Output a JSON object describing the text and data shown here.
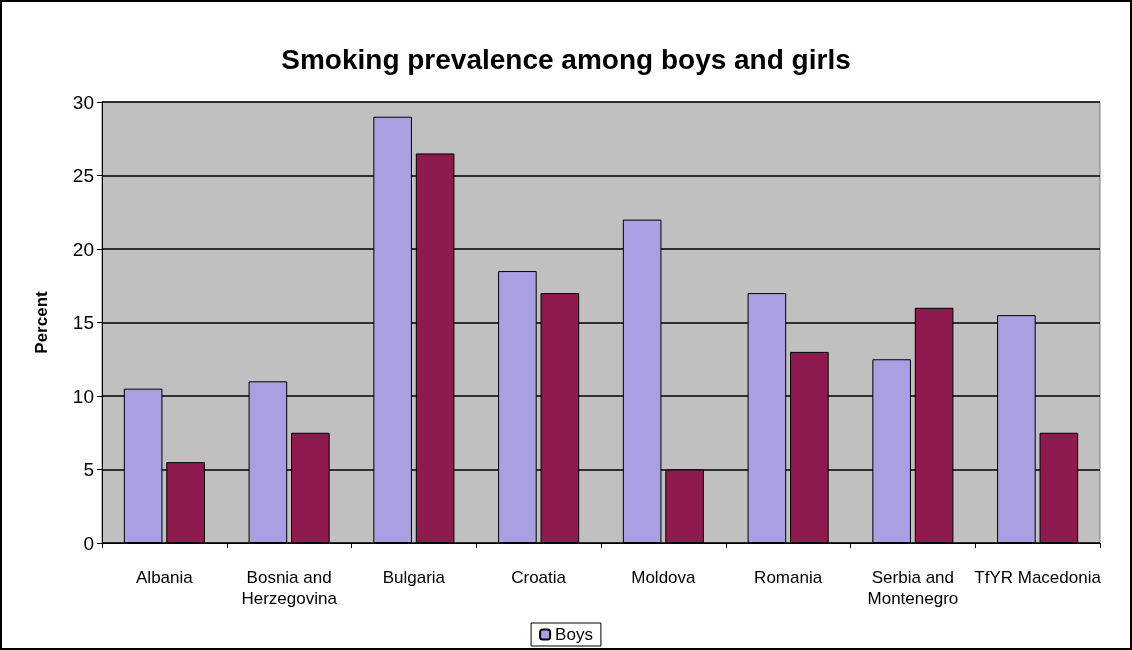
{
  "chart_data": {
    "type": "bar",
    "title": "Smoking prevalence among boys and girls",
    "ylabel": "Percent",
    "categories": [
      "Albania",
      "Bosnia and\nHerzegovina",
      "Bulgaria",
      "Croatia",
      "Moldova",
      "Romania",
      "Serbia and\nMontenegro",
      "TfYR Macedonia"
    ],
    "series": [
      {
        "name": "Boys",
        "color": "#a8a0e0",
        "values": [
          10.5,
          11,
          29,
          18.5,
          22,
          17,
          12.5,
          15.5
        ]
      },
      {
        "color": "#8e1a50",
        "values": [
          5.5,
          7.5,
          26.5,
          17,
          5,
          13,
          16,
          7.5
        ]
      }
    ],
    "ylim": [
      0,
      30
    ],
    "yticks": [
      0,
      5,
      10,
      15,
      20,
      25,
      30
    ],
    "grid": "y",
    "legend": "bottom"
  }
}
